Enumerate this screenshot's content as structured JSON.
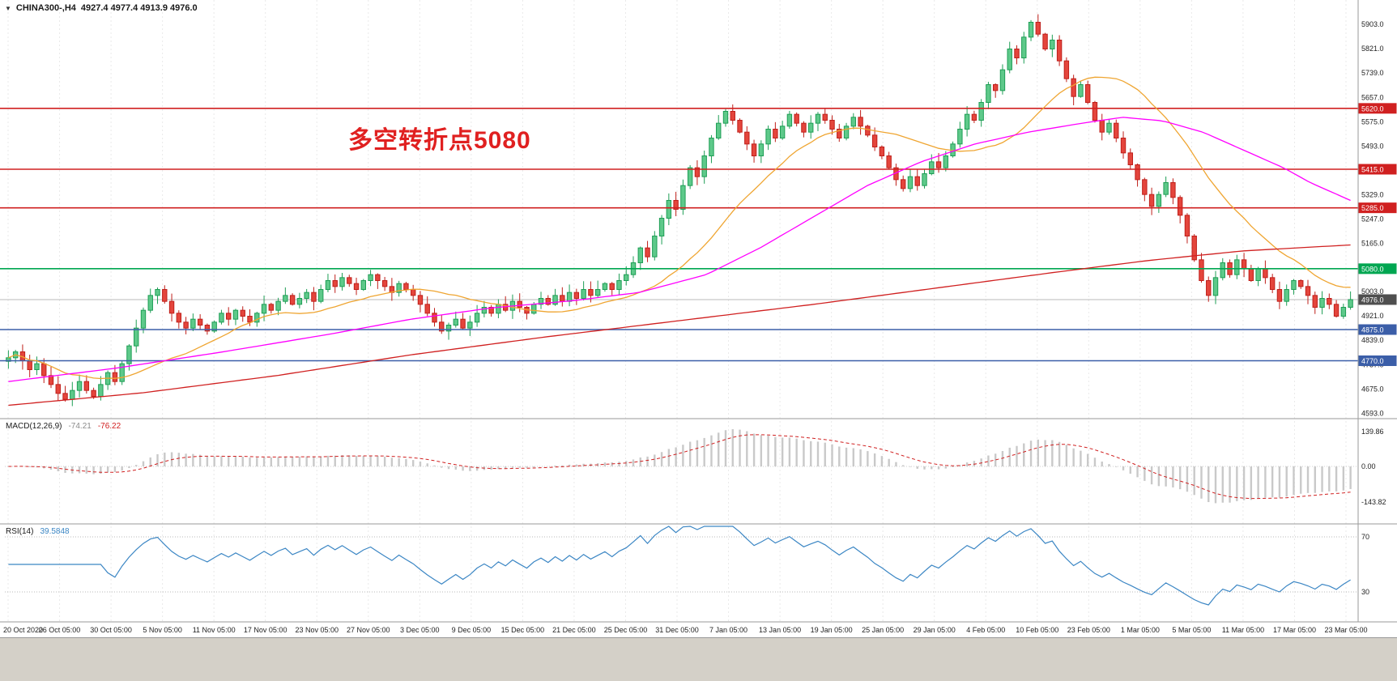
{
  "header": {
    "collapse_icon": "▼",
    "symbol_period": "CHINA300-,H4",
    "ohlc_values": "4927.4 4977.4 4913.9 4976.0"
  },
  "annotation": {
    "text": "多空转折点5080",
    "color": "#e02020"
  },
  "macd_panel": {
    "title": "MACD(12,26,9)",
    "main_value": "-74.21",
    "signal_value": "-76.22"
  },
  "rsi_panel": {
    "title": "RSI(14)",
    "value": "39.5848"
  },
  "colors": {
    "bull": "#1e9e55",
    "bull_fill": "#5ec98a",
    "bear": "#bf1f1a",
    "bear_fill": "#e4453c",
    "ma_fast": "#efa531",
    "ma_medium": "#ff00ff",
    "ma_slow": "#d02020",
    "macd_hist": "#c9c9c9",
    "macd_signal": "#d02020",
    "rsi_line": "#3b86c4",
    "level_red": "#d02020",
    "level_green": "#00a651",
    "level_blue": "#3b5ea8",
    "current_price_line": "#b8b8b8",
    "current_price_badge": "#4f4f4f",
    "grid": "#e9e9e9",
    "separator": "#9a9a9a",
    "footer_bg": "#d4d0c8"
  },
  "chart_data": {
    "type": "candlestick",
    "symbol": "CHINA300-",
    "timeframe": "H4",
    "title": "CHINA300-,H4",
    "ohlc_display": {
      "open": 4927.4,
      "high": 4977.4,
      "low": 4913.9,
      "close": 4976.0
    },
    "price_axis_range": [
      4593.0,
      5903.0
    ],
    "closes": [
      4780,
      4800,
      4770,
      4740,
      4760,
      4720,
      4690,
      4660,
      4640,
      4670,
      4700,
      4670,
      4650,
      4690,
      4730,
      4700,
      4760,
      4820,
      4880,
      4940,
      4990,
      5010,
      4970,
      4930,
      4900,
      4880,
      4910,
      4890,
      4870,
      4900,
      4930,
      4910,
      4940,
      4920,
      4900,
      4930,
      4960,
      4940,
      4970,
      4990,
      4960,
      4980,
      5000,
      4970,
      5010,
      5040,
      5020,
      5050,
      5030,
      5010,
      5040,
      5060,
      5040,
      5020,
      5000,
      5030,
      5010,
      4990,
      4960,
      4930,
      4900,
      4870,
      4890,
      4910,
      4880,
      4900,
      4930,
      4950,
      4930,
      4960,
      4940,
      4970,
      4950,
      4930,
      4960,
      4980,
      4960,
      4990,
      4970,
      5000,
      4980,
      5010,
      4990,
      5010,
      5030,
      5010,
      5040,
      5060,
      5100,
      5150,
      5120,
      5190,
      5250,
      5310,
      5280,
      5360,
      5420,
      5390,
      5460,
      5520,
      5570,
      5610,
      5580,
      5540,
      5500,
      5460,
      5500,
      5550,
      5520,
      5560,
      5600,
      5570,
      5540,
      5570,
      5600,
      5580,
      5550,
      5520,
      5560,
      5590,
      5560,
      5530,
      5490,
      5460,
      5420,
      5380,
      5350,
      5390,
      5360,
      5400,
      5440,
      5420,
      5460,
      5500,
      5550,
      5600,
      5580,
      5640,
      5700,
      5680,
      5750,
      5820,
      5790,
      5860,
      5910,
      5870,
      5820,
      5850,
      5780,
      5720,
      5660,
      5700,
      5640,
      5580,
      5540,
      5570,
      5520,
      5470,
      5430,
      5380,
      5330,
      5290,
      5330,
      5370,
      5320,
      5260,
      5190,
      5110,
      5040,
      4990,
      5050,
      5100,
      5060,
      5110,
      5080,
      5040,
      5080,
      5050,
      5010,
      4970,
      5010,
      5040,
      5020,
      4990,
      4950,
      4980,
      4960,
      4920,
      4950,
      4976
    ],
    "price_axis_labels": [
      "5903.0",
      "5821.0",
      "5739.0",
      "5657.0",
      "5575.0",
      "5493.0",
      "5411.0",
      "5329.0",
      "5247.0",
      "5165.0",
      "5083.0",
      "5003.0",
      "4921.0",
      "4839.0",
      "4757.0",
      "4675.0",
      "4593.0"
    ],
    "time_axis_labels": [
      "20 Oct 2020",
      "26 Oct 05:00",
      "30 Oct 05:00",
      "5 Nov 05:00",
      "11 Nov 05:00",
      "17 Nov 05:00",
      "23 Nov 05:00",
      "27 Nov 05:00",
      "3 Dec 05:00",
      "9 Dec 05:00",
      "15 Dec 05:00",
      "21 Dec 05:00",
      "25 Dec 05:00",
      "31 Dec 05:00",
      "7 Jan 05:00",
      "13 Jan 05:00",
      "19 Jan 05:00",
      "25 Jan 05:00",
      "29 Jan 05:00",
      "4 Feb 05:00",
      "10 Feb 05:00",
      "23 Feb 05:00",
      "1 Mar 05:00",
      "5 Mar 05:00",
      "11 Mar 05:00",
      "17 Mar 05:00",
      "23 Mar 05:00"
    ],
    "levels": [
      {
        "price": 5620.0,
        "label": "5620.0",
        "color_key": "level_red"
      },
      {
        "price": 5415.0,
        "label": "5415.0",
        "color_key": "level_red"
      },
      {
        "price": 5285.0,
        "label": "5285.0",
        "color_key": "level_red"
      },
      {
        "price": 5080.0,
        "label": "5080.0",
        "color_key": "level_green"
      },
      {
        "price": 4976.0,
        "label": "4976.0",
        "color_key": "current_price_line",
        "current": true
      },
      {
        "price": 4875.0,
        "label": "4875.0",
        "color_key": "level_blue"
      },
      {
        "price": 4770.0,
        "label": "4770.0",
        "color_key": "level_blue"
      }
    ],
    "overlays": [
      {
        "name": "ma-fast",
        "type": "sma",
        "period": 20,
        "color_key": "ma_fast"
      },
      {
        "name": "ma-medium",
        "type": "path",
        "color_key": "ma_medium",
        "keypoints": [
          [
            0.0,
            4700
          ],
          [
            0.08,
            4745
          ],
          [
            0.16,
            4800
          ],
          [
            0.24,
            4860
          ],
          [
            0.3,
            4910
          ],
          [
            0.36,
            4948
          ],
          [
            0.42,
            4972
          ],
          [
            0.47,
            5000
          ],
          [
            0.52,
            5060
          ],
          [
            0.56,
            5150
          ],
          [
            0.6,
            5255
          ],
          [
            0.64,
            5360
          ],
          [
            0.68,
            5440
          ],
          [
            0.72,
            5500
          ],
          [
            0.76,
            5540
          ],
          [
            0.8,
            5570
          ],
          [
            0.83,
            5590
          ],
          [
            0.86,
            5578
          ],
          [
            0.89,
            5540
          ],
          [
            0.92,
            5480
          ],
          [
            0.95,
            5420
          ],
          [
            0.97,
            5370
          ],
          [
            1.0,
            5310
          ]
        ]
      },
      {
        "name": "ma-slow",
        "type": "path",
        "color_key": "ma_slow",
        "keypoints": [
          [
            0.0,
            4620
          ],
          [
            0.1,
            4662
          ],
          [
            0.2,
            4720
          ],
          [
            0.3,
            4790
          ],
          [
            0.4,
            4850
          ],
          [
            0.5,
            4905
          ],
          [
            0.6,
            4960
          ],
          [
            0.7,
            5020
          ],
          [
            0.78,
            5068
          ],
          [
            0.85,
            5108
          ],
          [
            0.92,
            5140
          ],
          [
            1.0,
            5160
          ]
        ]
      }
    ],
    "indicator_panels": [
      {
        "name": "macd",
        "label": "MACD(12,26,9)",
        "current_values": [
          -74.21,
          -76.22
        ],
        "axis_labels": [
          {
            "text": "139.86",
            "value": 139.86
          },
          {
            "text": "0.00",
            "value": 0
          },
          {
            "text": "-143.82",
            "value": -143.82
          }
        ]
      },
      {
        "name": "rsi",
        "label": "RSI(14)",
        "current_value": 39.5848,
        "levels": [
          70,
          30
        ],
        "axis_labels": [
          {
            "text": "70",
            "value": 70
          },
          {
            "text": "30",
            "value": 30
          }
        ]
      }
    ]
  }
}
